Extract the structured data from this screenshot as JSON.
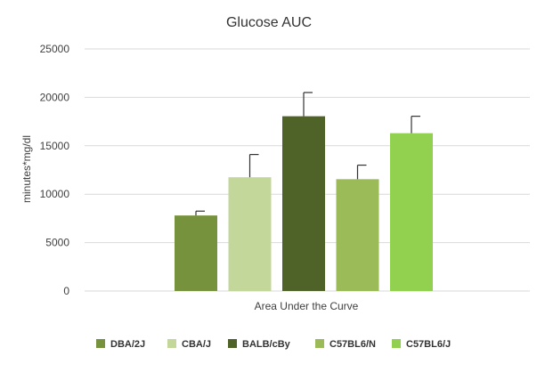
{
  "chart_data": {
    "type": "bar",
    "title": "Glucose AUC",
    "xlabel": "Area Under the Curve",
    "ylabel": "minutes*mg/dl",
    "ylim": [
      0,
      25000
    ],
    "yticks": [
      0,
      5000,
      10000,
      15000,
      20000,
      25000
    ],
    "grid": true,
    "legend_position": "bottom",
    "categories": [
      "Area Under the Curve"
    ],
    "series": [
      {
        "name": "DBA/2J",
        "values": [
          7800
        ],
        "error": [
          450
        ],
        "color": "#76923c"
      },
      {
        "name": "CBA/J",
        "values": [
          11750
        ],
        "error": [
          2350
        ],
        "color": "#c4d79b"
      },
      {
        "name": "BALB/cBy",
        "values": [
          18050
        ],
        "error": [
          2450
        ],
        "color": "#4f6228"
      },
      {
        "name": "C57BL6/N",
        "values": [
          11550
        ],
        "error": [
          1450
        ],
        "color": "#9bbb59"
      },
      {
        "name": "C57BL6/J",
        "values": [
          16300
        ],
        "error": [
          1750
        ],
        "color": "#92d050"
      }
    ]
  }
}
